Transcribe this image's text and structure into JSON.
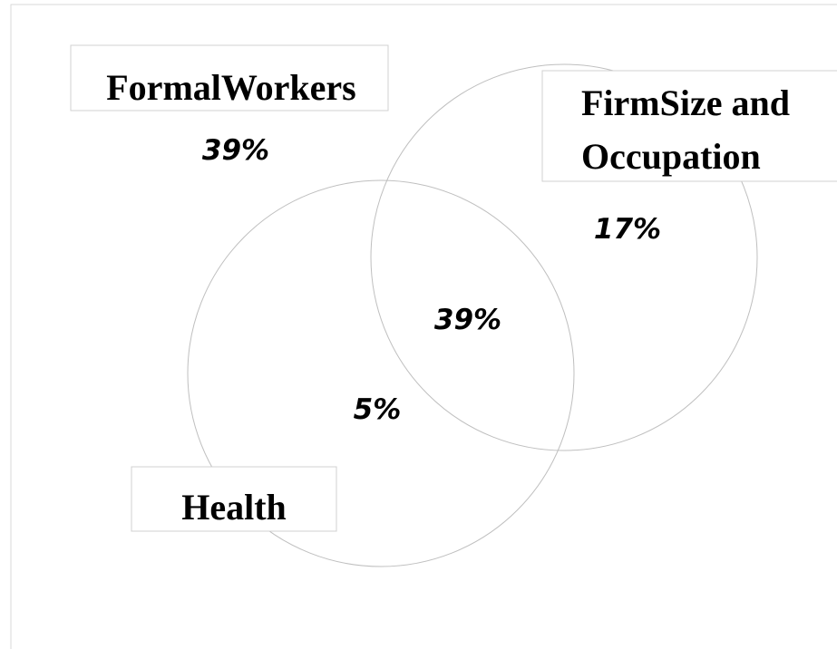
{
  "sets": [
    {
      "label": "FormalWorkers",
      "share": "39%"
    },
    {
      "label_lines": [
        "FirmSize and",
        "Occupation"
      ],
      "share": "17%"
    },
    {
      "label": "Health",
      "share": "5%"
    }
  ],
  "overlap": {
    "share": "39%"
  }
}
